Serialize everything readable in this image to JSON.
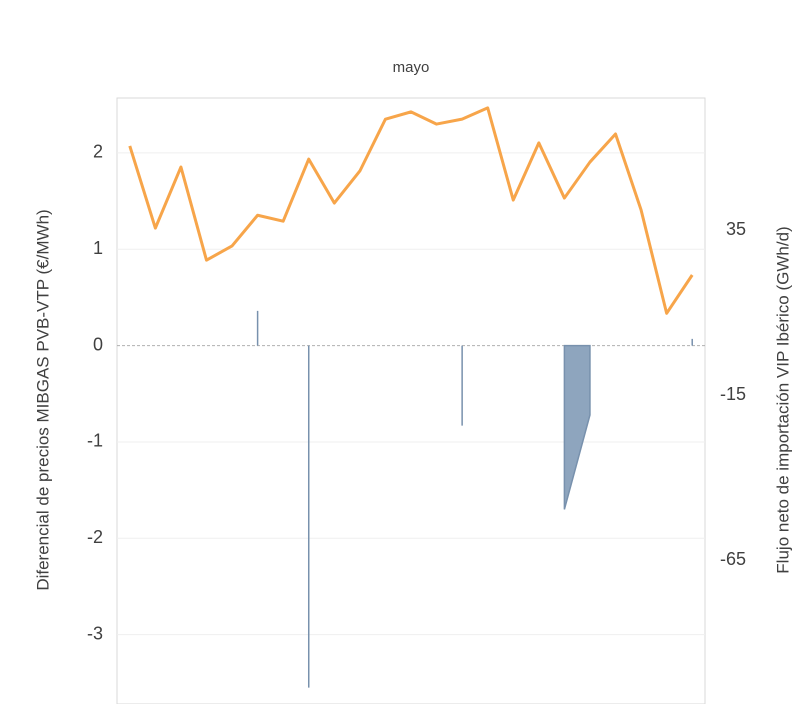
{
  "chart_data": {
    "type": "combo",
    "title": "mayo",
    "ylabel": "Diferencial de precios MIBGAS PVB-VTP (€/MWh)",
    "y2label": "Flujo neto de importación VIP Ibérico (GWh/d)",
    "categories": [
      null,
      null,
      null,
      null,
      null,
      null,
      null,
      null,
      null,
      null,
      null,
      null,
      null,
      null,
      null,
      null,
      null,
      null,
      null,
      null,
      null,
      null,
      null
    ],
    "ylim": [
      -3.72,
      2.57
    ],
    "yticks": [
      -3,
      -2,
      -1,
      0,
      1,
      2
    ],
    "y2lim": [
      -108.5,
      75
    ],
    "y2ticks": [
      -65,
      -15,
      35
    ],
    "grid": true,
    "series": [
      {
        "type": "area",
        "color": "#8ea5be",
        "values": [
          null,
          null,
          null,
          null,
          null,
          0.36,
          null,
          -3.55,
          null,
          null,
          null,
          null,
          null,
          -0.83,
          null,
          null,
          null,
          -1.7,
          -0.72,
          null,
          null,
          null,
          0.07
        ]
      },
      {
        "type": "line",
        "axis": "y2",
        "color": "#f7a54a",
        "values": [
          60.5,
          35.6,
          54.1,
          25.9,
          30.2,
          39.5,
          37.7,
          56.5,
          43.2,
          52.9,
          68.6,
          70.8,
          67.1,
          68.6,
          72.0,
          44.1,
          61.4,
          44.7,
          55.6,
          64.1,
          41.1,
          9.8,
          21.4
        ]
      }
    ]
  }
}
